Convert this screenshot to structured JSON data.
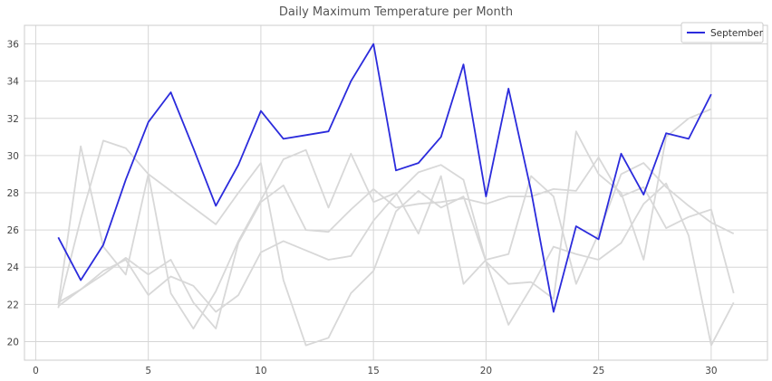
{
  "chart_data": {
    "type": "line",
    "title": "Daily Maximum Temperature per Month",
    "xlabel": "",
    "ylabel": "",
    "xlim": [
      -0.5,
      32.5
    ],
    "ylim": [
      19,
      37
    ],
    "x_ticks": [
      0,
      5,
      10,
      15,
      20,
      25,
      30
    ],
    "y_ticks": [
      20,
      22,
      24,
      26,
      28,
      30,
      32,
      34,
      36
    ],
    "grid": true,
    "legend": {
      "placement": "top-right",
      "entries": [
        "September"
      ]
    },
    "colors": {
      "highlight": "#2b2bdc",
      "background_series": "#d8d8d8"
    },
    "series": [
      {
        "name": "September",
        "highlight": true,
        "x": [
          1,
          2,
          3,
          4,
          5,
          6,
          7,
          8,
          9,
          10,
          11,
          12,
          13,
          14,
          15,
          16,
          17,
          18,
          19,
          20,
          21,
          22,
          23,
          24,
          25,
          26,
          27,
          28,
          29,
          30
        ],
        "values": [
          25.6,
          23.3,
          25.2,
          28.7,
          31.8,
          33.4,
          30.4,
          27.3,
          29.5,
          32.4,
          30.9,
          31.1,
          31.3,
          34.0,
          36.0,
          29.2,
          29.6,
          31.0,
          34.9,
          27.8,
          33.6,
          28.1,
          21.6,
          26.2,
          25.5,
          30.1,
          27.9,
          31.2,
          30.9,
          33.3
        ]
      },
      {
        "highlight": false,
        "x": [
          1,
          2,
          3,
          4,
          5,
          6,
          7,
          8,
          9,
          10,
          11,
          12,
          13,
          14,
          15,
          16,
          17,
          18,
          19,
          20,
          21,
          22,
          23,
          24,
          25,
          26,
          27,
          28,
          29,
          30,
          31
        ],
        "values": [
          21.8,
          26.6,
          30.8,
          30.4,
          29.0,
          28.1,
          27.2,
          26.3,
          28.0,
          29.6,
          23.3,
          19.8,
          20.2,
          22.6,
          23.8,
          27.0,
          28.1,
          27.2,
          27.8,
          24.3,
          20.9,
          22.9,
          25.1,
          24.7,
          24.4,
          25.3,
          27.4,
          28.5,
          25.7,
          19.8,
          22.1
        ]
      },
      {
        "highlight": false,
        "x": [
          1,
          2,
          3,
          4,
          5,
          6,
          7,
          8,
          9,
          10,
          11,
          12,
          13,
          14,
          15,
          16,
          17,
          18,
          19,
          20,
          21,
          22,
          23,
          24,
          25,
          26,
          27,
          28,
          29,
          30,
          31
        ],
        "values": [
          22.0,
          30.5,
          25.1,
          23.6,
          29.0,
          22.6,
          20.7,
          22.7,
          25.4,
          27.6,
          29.8,
          30.3,
          27.2,
          30.1,
          27.5,
          28.0,
          25.8,
          28.9,
          23.1,
          24.4,
          24.7,
          28.9,
          27.8,
          23.1,
          25.8,
          29.0,
          29.6,
          28.3,
          27.3,
          26.4,
          25.8
        ]
      },
      {
        "highlight": false,
        "x": [
          1,
          2,
          3,
          4,
          5,
          6,
          7,
          8,
          9,
          10,
          11,
          12,
          13,
          14,
          15,
          16,
          17,
          18,
          19,
          20,
          21,
          22,
          23,
          24,
          25,
          26,
          27,
          28,
          29,
          30,
          31
        ],
        "values": [
          22.1,
          22.8,
          23.6,
          24.5,
          23.6,
          24.4,
          22.1,
          20.7,
          25.3,
          27.5,
          28.4,
          26.0,
          25.9,
          27.1,
          28.2,
          27.2,
          27.4,
          27.5,
          27.7,
          27.4,
          27.8,
          27.8,
          28.2,
          28.1,
          29.9,
          27.8,
          28.3,
          26.1,
          26.7,
          27.1,
          22.6
        ]
      },
      {
        "highlight": false,
        "x": [
          1,
          2,
          3,
          4,
          5,
          6,
          7,
          8,
          9,
          10,
          11,
          12,
          13,
          14,
          15,
          16,
          17,
          18,
          19,
          20,
          21,
          22,
          23,
          24,
          25,
          26,
          27,
          28,
          29,
          30
        ],
        "values": [
          21.9,
          22.8,
          23.8,
          24.4,
          22.5,
          23.5,
          23.0,
          21.6,
          22.5,
          24.8,
          25.4,
          24.9,
          24.4,
          24.6,
          26.5,
          27.9,
          29.1,
          29.5,
          28.7,
          24.3,
          23.1,
          23.2,
          22.3,
          31.3,
          29.0,
          28.0,
          24.4,
          31.0,
          32.0,
          32.5
        ]
      }
    ]
  }
}
